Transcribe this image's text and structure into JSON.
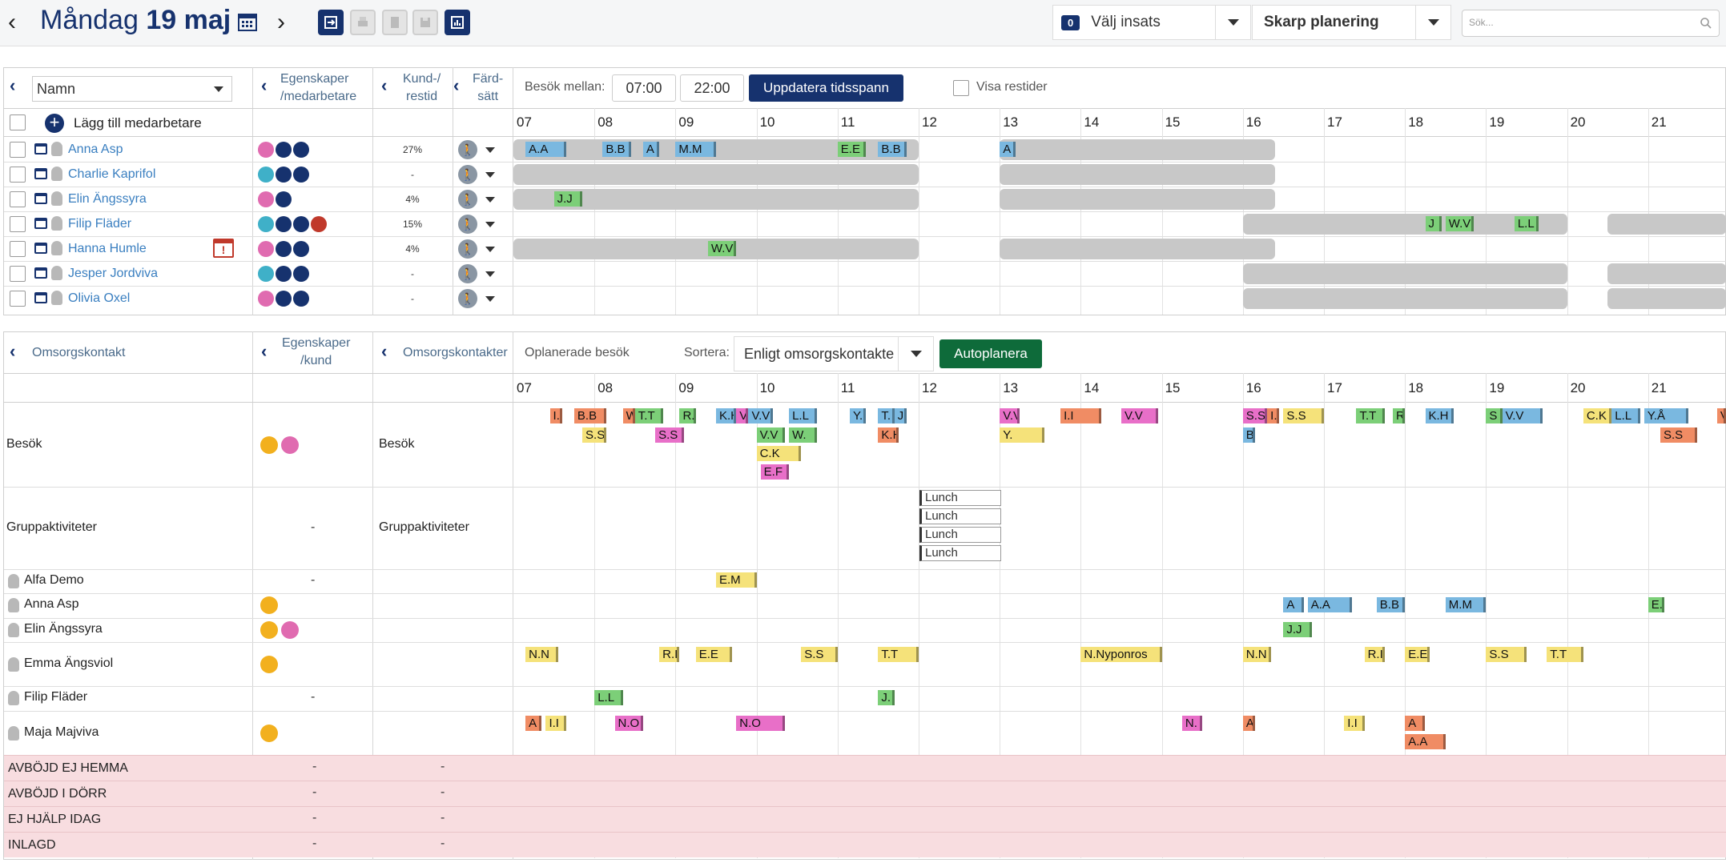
{
  "topbar": {
    "day": "Måndag",
    "date": "19 maj",
    "insats_count": "0",
    "insats_label": "Välj insats",
    "planning_label": "Skarp planering",
    "search_placeholder": "Sök..."
  },
  "staff_panel": {
    "col_name": "Namn",
    "col_props": "Egenskaper /medarbetare",
    "col_kund_1": "Kund-/",
    "col_kund_2": "restid",
    "col_fard_1": "Färd-",
    "col_fard_2": "sätt",
    "besok_label": "Besök mellan:",
    "time_from": "07:00",
    "time_to": "22:00",
    "update_button": "Uppdatera tidsspann",
    "show_travel": "Visa restider",
    "add_staff": "Lägg till medarbetare",
    "hours": [
      "07",
      "08",
      "09",
      "10",
      "11",
      "12",
      "13",
      "14",
      "15",
      "16",
      "17",
      "18",
      "19",
      "20",
      "21"
    ],
    "staff": [
      {
        "name": "Anna Asp",
        "pct": "27%"
      },
      {
        "name": "Charlie Kaprifol",
        "pct": "-"
      },
      {
        "name": "Elin Ängssyra",
        "pct": "4%"
      },
      {
        "name": "Filip Fläder",
        "pct": "15%"
      },
      {
        "name": "Hanna Humle",
        "pct": "4%"
      },
      {
        "name": "Jesper Jordviva",
        "pct": "-"
      },
      {
        "name": "Olivia Oxel",
        "pct": "-"
      }
    ],
    "blocks": [
      "A.A",
      "B.B",
      "A",
      "M.M",
      "E.E",
      "B.B",
      "A",
      "J.J",
      "J",
      "W.V",
      "L.L",
      "W.V"
    ]
  },
  "client_panel": {
    "col_contact": "Omsorgskontakt",
    "col_props_1": "Egenskaper",
    "col_props_2": "/kund",
    "col_contacts": "Omsorgskontakter",
    "unplanned": "Oplanerade besök",
    "sort_label": "Sortera:",
    "sort_value": "Enligt omsorgskontakte",
    "autoplan": "Autoplanera",
    "rows": [
      {
        "label": "Besök",
        "props": "",
        "contacts": "Besök"
      },
      {
        "label": "Gruppaktiviteter",
        "props": "-",
        "contacts": "Gruppaktiviteter"
      },
      {
        "label": "Alfa Demo",
        "props": "-",
        "contacts": ""
      },
      {
        "label": "Anna Asp",
        "props": "",
        "contacts": ""
      },
      {
        "label": "Elin Ängssyra",
        "props": "",
        "contacts": ""
      },
      {
        "label": "Emma Ängsviol",
        "props": "",
        "contacts": ""
      },
      {
        "label": "Filip Fläder",
        "props": "-",
        "contacts": ""
      },
      {
        "label": "Maja Majviva",
        "props": "",
        "contacts": ""
      }
    ],
    "status_rows": [
      {
        "label": "AVBÖJD EJ HEMMA",
        "a": "-",
        "b": "-"
      },
      {
        "label": "AVBÖJD I DÖRR",
        "a": "-",
        "b": "-"
      },
      {
        "label": "EJ HJÄLP IDAG",
        "a": "-",
        "b": "-"
      },
      {
        "label": "INLAGD",
        "a": "-",
        "b": "-"
      }
    ],
    "lunch": [
      "Lunch",
      "Lunch",
      "Lunch",
      "Lunch"
    ],
    "blocks": [
      "I.",
      "B.B",
      "W",
      "T.T",
      "R.F",
      "K.H",
      "V.",
      "V.V",
      "L.L",
      "Y.",
      "T.",
      "J.",
      "V.V",
      "I.I",
      "V.V",
      "S.S",
      "I.",
      "S.S",
      "T.T",
      "R",
      "K.H",
      "S",
      "V.V",
      "C.K",
      "L.L",
      "Y.Å",
      "V",
      "S.S",
      "S.S",
      "V.V",
      "W.",
      "K.H",
      "Y.",
      "B.B",
      "S.S",
      "C.K",
      "E.F",
      "E.M",
      "A",
      "A.A",
      "B.B",
      "M.M",
      "E.",
      "J.J",
      "N.N",
      "R.I",
      "E.E",
      "S.S",
      "T.T",
      "N.Nyponros",
      "N.N",
      "R.I",
      "E.E",
      "S.S",
      "T.T",
      "L.L",
      "J.",
      "A",
      "I.I",
      "N.O",
      "N.O",
      "N.",
      "A",
      "I.I",
      "A",
      "A.A"
    ]
  }
}
